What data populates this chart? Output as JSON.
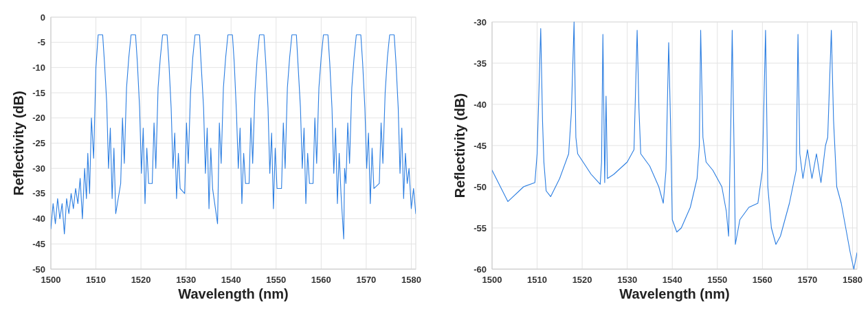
{
  "chart_data": [
    {
      "type": "line",
      "xlabel": "Wavelength (nm)",
      "ylabel": "Reflectivity (dB)",
      "xlim": [
        1500,
        1581
      ],
      "xticks": [
        1500,
        1510,
        1520,
        1530,
        1540,
        1550,
        1560,
        1570,
        1580
      ],
      "ylim": [
        -50,
        0
      ],
      "yticks": [
        -50,
        -45,
        -40,
        -35,
        -30,
        -25,
        -20,
        -15,
        -10,
        -5,
        0
      ],
      "grid": true,
      "marker": "none",
      "line_style": "solid",
      "series": [
        {
          "color": "#2a7de1",
          "x": [
            1500,
            1500.5,
            1501,
            1501.5,
            1502,
            1502.5,
            1503,
            1503.5,
            1504,
            1504.5,
            1505,
            1505.5,
            1506,
            1506.5,
            1507,
            1507.5,
            1507.9,
            1508.2,
            1508.6,
            1509,
            1509.5,
            1510,
            1510.5,
            1511.5,
            1511.9,
            1512.4,
            1512.8,
            1513.2,
            1513.6,
            1514,
            1514.4,
            1515.5,
            1515.9,
            1516.3,
            1516.8,
            1517.3,
            1517.8,
            1518.8,
            1519.2,
            1519.7,
            1520.1,
            1520.5,
            1520.9,
            1521.3,
            1521.7,
            1522.5,
            1522.9,
            1523.3,
            1523.8,
            1524.3,
            1524.8,
            1525.8,
            1526.2,
            1526.7,
            1527.1,
            1527.5,
            1527.9,
            1528.3,
            1528.7,
            1529.7,
            1530.1,
            1530.5,
            1531,
            1531.5,
            1532,
            1533,
            1533.4,
            1533.9,
            1534.3,
            1534.7,
            1535.1,
            1535.5,
            1535.9,
            1537,
            1537.4,
            1537.8,
            1538.3,
            1538.8,
            1539.3,
            1540.3,
            1540.7,
            1541.2,
            1541.6,
            1542,
            1542.4,
            1542.8,
            1543.2,
            1544,
            1544.4,
            1544.8,
            1545.3,
            1545.8,
            1546.3,
            1547.3,
            1547.7,
            1548.2,
            1548.6,
            1549,
            1549.4,
            1549.8,
            1550.2,
            1551.2,
            1551.6,
            1552,
            1552.5,
            1553,
            1553.5,
            1554.5,
            1554.9,
            1555.4,
            1555.8,
            1556.2,
            1556.6,
            1557,
            1557.4,
            1558.2,
            1558.6,
            1559,
            1559.5,
            1560,
            1560.5,
            1561.5,
            1561.9,
            1562.4,
            1562.8,
            1563.2,
            1563.6,
            1564,
            1564.4,
            1565,
            1565.2,
            1565.5,
            1565.9,
            1566.3,
            1566.8,
            1567.3,
            1567.8,
            1568.8,
            1569.2,
            1569.7,
            1570.1,
            1570.5,
            1570.9,
            1571.3,
            1571.7,
            1572.9,
            1573.3,
            1573.7,
            1574.2,
            1574.7,
            1575.2,
            1576.2,
            1576.6,
            1577.1,
            1577.5,
            1577.9,
            1578.3,
            1578.7,
            1579.1,
            1579.5,
            1580,
            1580.5,
            1581
          ],
          "values": [
            -42,
            -37,
            -41,
            -36,
            -40,
            -37,
            -43,
            -36,
            -39,
            -35,
            -38,
            -34,
            -37,
            -32,
            -40,
            -30,
            -36,
            -27,
            -35,
            -20,
            -28,
            -10,
            -3.5,
            -3.5,
            -9,
            -17,
            -30,
            -22,
            -36,
            -26,
            -39,
            -33,
            -20,
            -29,
            -14,
            -8,
            -3.5,
            -3.5,
            -9,
            -18,
            -31,
            -22,
            -37,
            -26,
            -33,
            -33,
            -21,
            -30,
            -14,
            -8,
            -3.5,
            -3.5,
            -9,
            -18,
            -30,
            -23,
            -36,
            -27,
            -34,
            -35,
            -21,
            -29,
            -15,
            -8,
            -3.5,
            -3.5,
            -10,
            -18,
            -31,
            -22,
            -38,
            -26,
            -34,
            -41,
            -21,
            -29,
            -14,
            -8,
            -3.5,
            -3.5,
            -9,
            -19,
            -30,
            -22,
            -37,
            -27,
            -33,
            -33,
            -20,
            -29,
            -15,
            -8,
            -3.5,
            -3.5,
            -9,
            -18,
            -31,
            -23,
            -38,
            -26,
            -34,
            -34,
            -21,
            -30,
            -14,
            -8,
            -3.5,
            -3.5,
            -10,
            -18,
            -30,
            -22,
            -37,
            -27,
            -33,
            -33,
            -20,
            -29,
            -14,
            -8,
            -3.5,
            -3.5,
            -9,
            -18,
            -31,
            -22,
            -37,
            -27,
            -35,
            -44,
            -30,
            -33,
            -21,
            -29,
            -14,
            -8,
            -3.5,
            -3.5,
            -9,
            -18,
            -30,
            -23,
            -37,
            -26,
            -34,
            -33,
            -21,
            -29,
            -15,
            -8,
            -3.5,
            -3.5,
            -9,
            -18,
            -31,
            -22,
            -36,
            -27,
            -33,
            -30,
            -38,
            -34,
            -39
          ]
        }
      ]
    },
    {
      "type": "line",
      "xlabel": "Wavelength (nm)",
      "ylabel": "Reflectivity (dB)",
      "xlim": [
        1500,
        1581
      ],
      "xticks": [
        1500,
        1510,
        1520,
        1530,
        1540,
        1550,
        1560,
        1570,
        1580
      ],
      "ylim": [
        -60,
        -30
      ],
      "yticks": [
        -60,
        -55,
        -50,
        -45,
        -40,
        -35,
        -30
      ],
      "grid": true,
      "marker": "none",
      "line_style": "solid",
      "series": [
        {
          "color": "#2a7de1",
          "x": [
            1500,
            1503.5,
            1507,
            1509.5,
            1510,
            1510.8,
            1511.2,
            1511.5,
            1512,
            1513,
            1515,
            1517,
            1517.6,
            1518.2,
            1518.6,
            1519,
            1522,
            1524,
            1524.3,
            1524.6,
            1525,
            1525.3,
            1525.6,
            1527,
            1530,
            1531.5,
            1532.2,
            1532.6,
            1533,
            1535,
            1537,
            1538,
            1538.6,
            1539.2,
            1539.6,
            1540,
            1541,
            1542,
            1544,
            1545.5,
            1546,
            1546.3,
            1546.8,
            1547.5,
            1549,
            1551,
            1552,
            1552.5,
            1553,
            1553.3,
            1553.7,
            1554,
            1555,
            1557,
            1559,
            1560,
            1560.7,
            1561.2,
            1562,
            1563,
            1564,
            1566,
            1567.5,
            1567.9,
            1568.3,
            1569,
            1570,
            1571,
            1572,
            1573,
            1574,
            1574.5,
            1575.3,
            1575.8,
            1576.5,
            1577.5,
            1578.5,
            1579.5,
            1580.3,
            1581
          ],
          "values": [
            -48,
            -51.8,
            -50,
            -49.5,
            -46,
            -30.8,
            -42,
            -47,
            -50.5,
            -51.2,
            -49,
            -46,
            -41,
            -30,
            -44,
            -46,
            -48.5,
            -49.7,
            -47,
            -31.5,
            -49.5,
            -39,
            -49,
            -48.5,
            -47,
            -45.5,
            -31,
            -40.5,
            -46,
            -47.5,
            -50,
            -52,
            -48,
            -32.5,
            -42,
            -54,
            -55.5,
            -55,
            -52.5,
            -49,
            -45,
            -31,
            -44,
            -47,
            -48,
            -50,
            -53,
            -56,
            -42,
            -31,
            -45,
            -57,
            -54,
            -52.5,
            -52,
            -48,
            -31,
            -50,
            -55,
            -57,
            -56,
            -52,
            -48,
            -31.5,
            -46,
            -49,
            -45.5,
            -49,
            -46,
            -49.5,
            -45,
            -44,
            -31,
            -42,
            -50,
            -52,
            -55,
            -58,
            -60,
            -58
          ]
        }
      ]
    }
  ]
}
